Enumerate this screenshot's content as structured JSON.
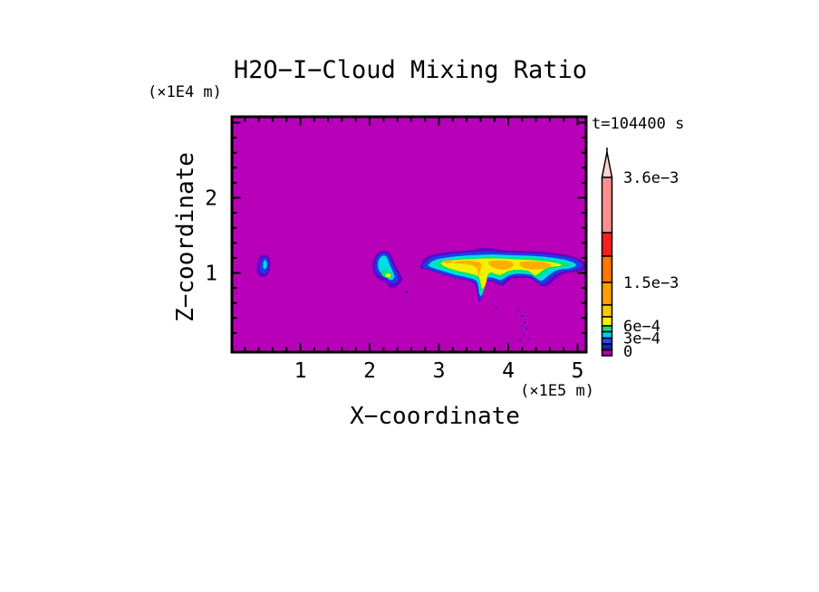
{
  "chart_data": {
    "type": "heatmap",
    "title": "H2O−I−Cloud Mixing Ratio",
    "time_annotation": "t=104400 s",
    "xlabel": "X−coordinate",
    "ylabel": "Z−coordinate",
    "x_units": "(×1E5 m)",
    "y_units": "(×1E4 m)",
    "xlim": [
      0,
      5.14
    ],
    "ylim": [
      0,
      3.06
    ],
    "x_major_ticks": [
      1,
      2,
      3,
      4,
      5
    ],
    "x_tick_labels": [
      "1",
      "2",
      "3",
      "4",
      "5"
    ],
    "y_major_ticks": [
      1,
      2,
      3
    ],
    "y_tick_labels": [
      "1",
      "2"
    ],
    "x_minor_step": 0.2,
    "y_minor_step": 0.2,
    "background_color": "#B800B8",
    "background_meaning": "mixing ratio below lowest contour level",
    "colorbar": {
      "tick_labels": [
        "3.6e−3",
        "1.5e−3",
        "6e−4",
        "3e−4",
        "0"
      ],
      "tick_values": [
        0.0036,
        0.0015,
        0.0006,
        0.0003,
        0
      ],
      "segment_colors_top_to_bottom": [
        "#FF9090",
        "#FA1E1E",
        "#FF7800",
        "#FFA000",
        "#FFC800",
        "#F2F200",
        "#00E673",
        "#00CDE6",
        "#2846F0",
        "#2020B4",
        "#A800B4"
      ],
      "arrow_color": "#FFD2D2"
    },
    "contour_colors": {
      "outer_violet": "#6400C8",
      "blue": "#1E3CE6",
      "cyan": "#00DCE1",
      "green": "#00E673",
      "yellow": "#F2F200",
      "orange": "#FFAE00"
    },
    "features": [
      {
        "name": "small cloud",
        "x_extent_1e5m": [
          0.37,
          0.57
        ],
        "z_extent_1e4m": [
          0.95,
          1.25
        ],
        "peak_color": "cyan",
        "peak_level": "≈3e-4"
      },
      {
        "name": "medium cloud",
        "x_extent_1e5m": [
          2.03,
          2.47
        ],
        "z_extent_1e4m": [
          0.78,
          1.3
        ],
        "peak_color": "yellow",
        "peak_level": "≈6e-4"
      },
      {
        "name": "large anvil cloud with fallstreak",
        "x_extent_1e5m": [
          2.72,
          5.13
        ],
        "z_extent_1e4m": [
          0.62,
          1.35
        ],
        "peak_color": "orange",
        "peak_level": "≈1.5e-3",
        "fallstreak_x_1e5m": 3.6
      }
    ]
  }
}
